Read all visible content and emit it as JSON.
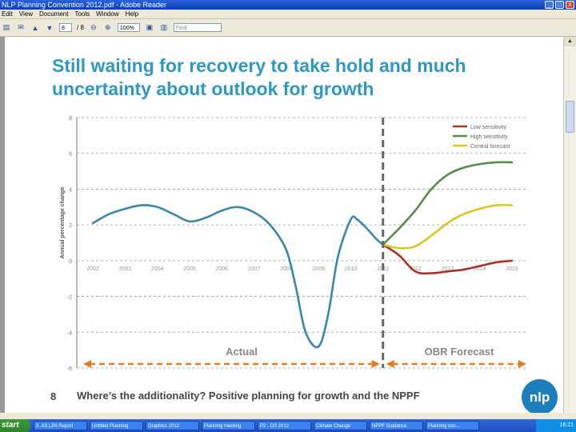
{
  "window": {
    "title": "NLP Planning Convention 2012.pdf - Adobe Reader",
    "minimize": "_",
    "maximize": "□",
    "close": "X"
  },
  "menu": [
    "Edit",
    "View",
    "Document",
    "Tools",
    "Window",
    "Help"
  ],
  "toolbar": {
    "page_number": "8",
    "page_total": "/ 8",
    "zoom": "100%",
    "find_placeholder": "Find"
  },
  "slide": {
    "title": "Still waiting for recovery to take hold and much uncertainty about outlook for growth",
    "page_number": "8",
    "footer": "Where’s the additionality? Positive planning for growth and the NPPF",
    "logo": "nlp"
  },
  "colors": {
    "title": "#2e98c4",
    "actual": "#3a88a8",
    "low": "#a8332a",
    "high": "#5a8a4a",
    "central": "#d8c823",
    "arrow": "#e07f22"
  },
  "chart_data": {
    "type": "line",
    "ylabel": "Annual percentage change",
    "ylim": [
      -6,
      8
    ],
    "yticks": [
      "8",
      "6",
      "4",
      "2",
      "0",
      "-2",
      "-4",
      "-6"
    ],
    "categories": [
      "2002",
      "2003",
      "2004",
      "2005",
      "2006",
      "2007",
      "2008",
      "2009",
      "2010",
      "2011",
      "2012",
      "2013",
      "2014",
      "2015"
    ],
    "series": [
      {
        "name": "Actual",
        "x": [
          2002,
          2002.5,
          2003,
          2003.5,
          2004,
          2004.5,
          2005,
          2005.5,
          2006,
          2006.5,
          2007,
          2007.5,
          2008,
          2008.3,
          2008.6,
          2009,
          2009.3,
          2009.6,
          2010,
          2010.2,
          2010.5,
          2010.8,
          2011
        ],
        "values": [
          2.1,
          2.6,
          2.9,
          3.1,
          3.0,
          2.6,
          2.2,
          2.4,
          2.8,
          3.0,
          2.7,
          2.0,
          0.6,
          -1.5,
          -4.0,
          -4.8,
          -3.0,
          0.2,
          2.3,
          2.3,
          1.8,
          1.2,
          0.9
        ]
      },
      {
        "name": "Low sensitivity",
        "x": [
          2011,
          2011.5,
          2012,
          2012.5,
          2013,
          2013.5,
          2014,
          2014.5,
          2015
        ],
        "values": [
          0.9,
          0.3,
          -0.6,
          -0.7,
          -0.6,
          -0.5,
          -0.3,
          -0.1,
          0.0
        ]
      },
      {
        "name": "High sensitivity",
        "x": [
          2011,
          2011.5,
          2012,
          2012.5,
          2013,
          2013.5,
          2014,
          2014.5,
          2015
        ],
        "values": [
          0.9,
          1.8,
          2.8,
          4.0,
          4.8,
          5.2,
          5.4,
          5.5,
          5.5
        ]
      },
      {
        "name": "Central forecast",
        "x": [
          2011,
          2011.5,
          2012,
          2012.5,
          2013,
          2013.5,
          2014,
          2014.5,
          2015
        ],
        "values": [
          0.9,
          0.7,
          0.8,
          1.4,
          2.1,
          2.6,
          2.9,
          3.1,
          3.1
        ]
      }
    ],
    "legend": [
      "Low sensitivity",
      "High sensitivity",
      "Central forecast"
    ],
    "legend_position": "top-right",
    "divider_at": 2011,
    "annotations": {
      "actual": "Actual",
      "forecast": "OBR Forecast"
    }
  },
  "taskbar": {
    "start": "start",
    "tasks": [
      "3. AS LPA Report",
      "Untitled Planning",
      "Graphics 2012",
      "Planning meeting",
      "P2 - DS 2012",
      "Climate Change",
      "NPPF Guidance",
      "Planning con..."
    ],
    "clock": "16:21"
  }
}
